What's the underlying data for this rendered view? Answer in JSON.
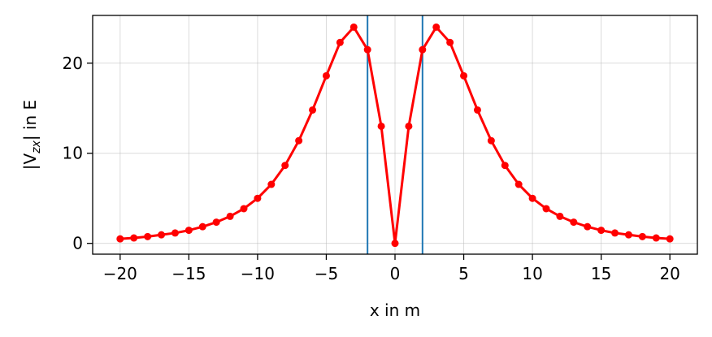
{
  "chart_data": {
    "type": "line",
    "xlabel": "x in m",
    "ylabel": {
      "prefix": "|V",
      "subscript": "zx",
      "suffix": "| in E"
    },
    "xlim": [
      -22,
      22
    ],
    "ylim": [
      -1.2,
      25.3
    ],
    "xticks": [
      -20,
      -15,
      -10,
      -5,
      0,
      5,
      10,
      15,
      20
    ],
    "xtick_labels": [
      "−20",
      "−15",
      "−10",
      "−5",
      "0",
      "5",
      "10",
      "15",
      "20"
    ],
    "yticks": [
      0,
      10,
      20
    ],
    "ytick_labels": [
      "0",
      "10",
      "20"
    ],
    "grid": true,
    "colors": {
      "series": "#ff0000",
      "vlines": "#1f77b4"
    },
    "vlines": [
      -2,
      2
    ],
    "series": [
      {
        "x": [
          -20,
          -19,
          -18,
          -17,
          -16,
          -15,
          -14,
          -13,
          -12,
          -11,
          -10,
          -9,
          -8,
          -7,
          -6,
          -5,
          -4,
          -3,
          -2,
          -1,
          0,
          1,
          2,
          3,
          4,
          5,
          6,
          7,
          8,
          9,
          10,
          11,
          12,
          13,
          14,
          15,
          16,
          17,
          18,
          19,
          20
        ],
        "y": [
          0.5,
          0.6,
          0.75,
          0.95,
          1.15,
          1.45,
          1.85,
          2.35,
          3.0,
          3.85,
          5.0,
          6.55,
          8.65,
          11.4,
          14.8,
          18.6,
          22.3,
          24.0,
          21.5,
          13.0,
          0.0,
          13.0,
          21.5,
          24.0,
          22.3,
          18.6,
          14.8,
          11.4,
          8.65,
          6.55,
          5.0,
          3.85,
          3.0,
          2.35,
          1.85,
          1.45,
          1.15,
          0.95,
          0.75,
          0.6,
          0.5
        ]
      }
    ]
  }
}
